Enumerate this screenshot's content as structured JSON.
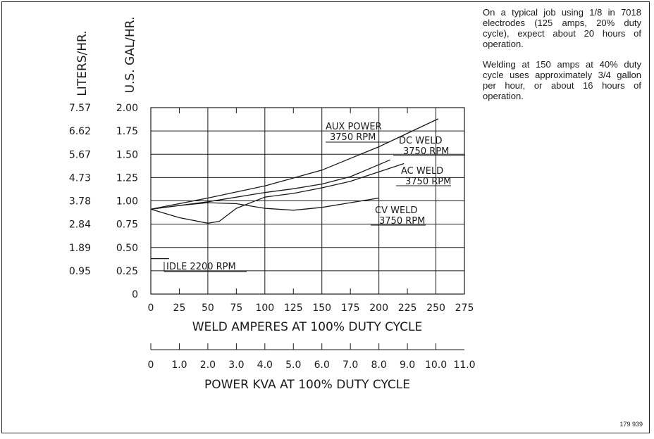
{
  "notes": [
    "On a typical job using 1/8 in 7018 electrodes (125 amps, 20% duty cycle), expect about 20 hours of operation.",
    "Welding at 150 amps at 40% duty cycle uses approximately 3/4 gallon per hour, or about 16 hours of operation."
  ],
  "figure_id": "179 939",
  "chart_data": {
    "type": "line",
    "ylabel_left": "LITERS/HR.",
    "ylabel_right": "U.S. GAL/HR.",
    "xlabel": "WELD AMPERES AT 100% DUTY CYCLE",
    "xlabel2": "POWER KVA AT 100% DUTY CYCLE",
    "xlim": [
      0,
      275
    ],
    "ylim": [
      0,
      2.0
    ],
    "grid": true,
    "x_ticks": [
      "0",
      "25",
      "50",
      "75",
      "100",
      "125",
      "150",
      "175",
      "200",
      "225",
      "250",
      "275"
    ],
    "x_tick_values": [
      0,
      25,
      50,
      75,
      100,
      125,
      150,
      175,
      200,
      225,
      250,
      275
    ],
    "kva_ticks": [
      "0",
      "1.0",
      "2.0",
      "3.0",
      "4.0",
      "5.0",
      "6.0",
      "7.0",
      "8.0",
      "9.0",
      "10.0",
      "11.0"
    ],
    "y_ticks_gal": [
      "0",
      "0.25",
      "0.50",
      "0.75",
      "1.00",
      "1.25",
      "1.50",
      "1.75",
      "2.00"
    ],
    "y_tick_values": [
      0,
      0.25,
      0.5,
      0.75,
      1.0,
      1.25,
      1.5,
      1.75,
      2.0
    ],
    "y_ticks_liters": [
      "0.95",
      "1.89",
      "2.84",
      "3.78",
      "4.73",
      "5.67",
      "6.62",
      "7.57"
    ],
    "y_ticks_liters_values": [
      0.25,
      0.5,
      0.75,
      1.0,
      1.25,
      1.5,
      1.75,
      2.0
    ],
    "series": [
      {
        "name_line1": "AUX POWER",
        "name_line2": "3750 RPM",
        "x": [
          0,
          50,
          100,
          150,
          200,
          252
        ],
        "y": [
          0.91,
          1.03,
          1.16,
          1.33,
          1.58,
          1.88
        ]
      },
      {
        "name_line1": "DC WELD",
        "name_line2": "3750 RPM",
        "x": [
          0,
          50,
          100,
          125,
          150,
          175,
          210
        ],
        "y": [
          0.91,
          0.99,
          1.09,
          1.13,
          1.18,
          1.26,
          1.44
        ]
      },
      {
        "name_line1": "AC WELD",
        "name_line2": "3750 RPM",
        "x": [
          0,
          25,
          50,
          60,
          75,
          100,
          125,
          150,
          175,
          222
        ],
        "y": [
          0.91,
          0.82,
          0.76,
          0.78,
          0.92,
          1.04,
          1.08,
          1.14,
          1.21,
          1.4
        ]
      },
      {
        "name_line1": "CV WELD",
        "name_line2": "3750 RPM",
        "x": [
          0,
          25,
          50,
          75,
          100,
          125,
          150,
          175,
          200
        ],
        "y": [
          0.91,
          0.95,
          0.98,
          0.97,
          0.92,
          0.9,
          0.93,
          0.98,
          1.03
        ]
      }
    ],
    "idle": {
      "label": "IDLE 2200 RPM",
      "y": 0.38,
      "x_end": 16
    }
  }
}
